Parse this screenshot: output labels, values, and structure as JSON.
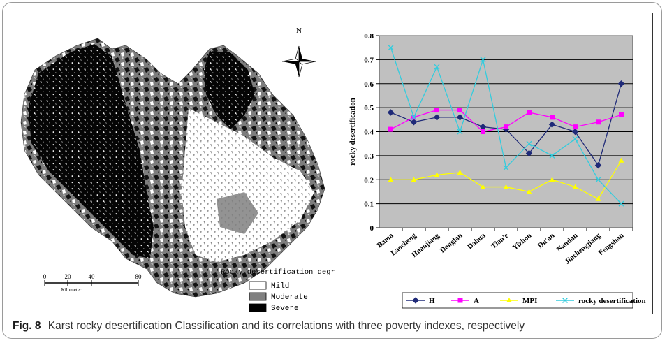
{
  "figure": {
    "caption_label": "Fig. 8",
    "caption_text": "Karst rocky desertification Classification and its correlations with three poverty indexes, respectively"
  },
  "map": {
    "north_label": "N",
    "scale_ticks": [
      "0",
      "20",
      "40",
      "80"
    ],
    "scale_unit": "Kilometer",
    "legend_title": "Rocky desertification degree",
    "legend_items": [
      {
        "label": "Mild",
        "color": "#ffffff"
      },
      {
        "label": "Moderate",
        "color": "#808080"
      },
      {
        "label": "Severe",
        "color": "#000000"
      }
    ]
  },
  "chart_data": {
    "type": "line",
    "ylabel": "rocky desertification",
    "xlabel": "",
    "ylim": [
      0,
      0.8
    ],
    "yticks": [
      "0",
      "0.1",
      "0.2",
      "0.3",
      "0.4",
      "0.5",
      "0.6",
      "0.7",
      "0.8"
    ],
    "grid": true,
    "legend_position": "bottom",
    "categories": [
      "Bama",
      "Laocheng",
      "Huanjiang",
      "Donglan",
      "Dahua",
      "Tian'e",
      "Yizhou",
      "Du'an",
      "Nandan",
      "Jinchengjiang",
      "Fengshan"
    ],
    "series": [
      {
        "name": "H",
        "color": "#1f2a78",
        "marker": "diamond",
        "values": [
          0.48,
          0.44,
          0.46,
          0.46,
          0.42,
          0.41,
          0.31,
          0.43,
          0.4,
          0.26,
          0.6
        ]
      },
      {
        "name": "A",
        "color": "#ff00ff",
        "marker": "square",
        "values": [
          0.41,
          0.46,
          0.49,
          0.49,
          0.4,
          0.42,
          0.48,
          0.46,
          0.42,
          0.44,
          0.47
        ]
      },
      {
        "name": "MPI",
        "color": "#ffff00",
        "marker": "triangle",
        "values": [
          0.2,
          0.2,
          0.22,
          0.23,
          0.17,
          0.17,
          0.15,
          0.2,
          0.17,
          0.12,
          0.28
        ]
      },
      {
        "name": "rocky desertification",
        "color": "#33ccdd",
        "marker": "x",
        "values": [
          0.75,
          0.46,
          0.67,
          0.4,
          0.7,
          0.25,
          0.35,
          0.3,
          0.37,
          0.2,
          0.1
        ]
      }
    ]
  }
}
